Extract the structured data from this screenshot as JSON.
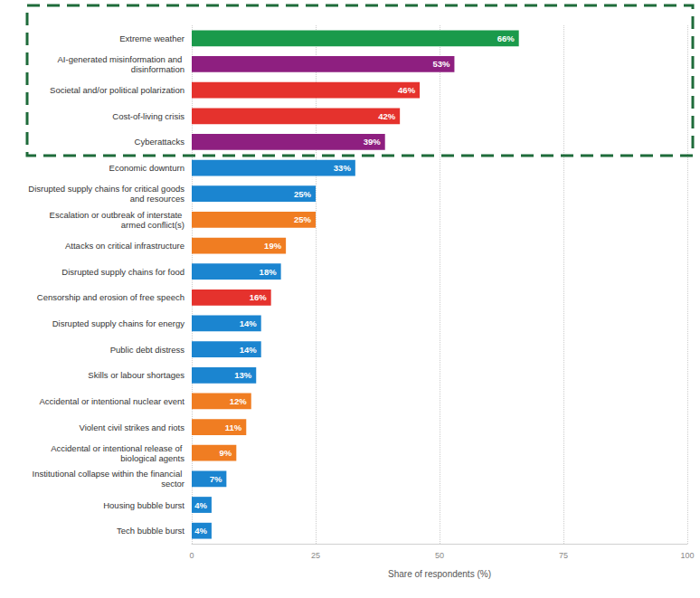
{
  "chart_data": {
    "type": "bar",
    "orientation": "horizontal",
    "xlabel": "Share of respondents (%)",
    "categories": [
      "Extreme weather",
      "AI-generated misinformation and disinformation",
      "Societal and/or political polarization",
      "Cost-of-living crisis",
      "Cyberattacks",
      "Economic downturn",
      "Disrupted supply chains for critical goods and resources",
      "Escalation or outbreak of interstate armed conflict(s)",
      "Attacks on critical infrastructure",
      "Disrupted supply chains for food",
      "Censorship and erosion of free speech",
      "Disrupted supply chains for energy",
      "Public debt distress",
      "Skills or labour shortages",
      "Accidental or intentional nuclear event",
      "Violent civil strikes and riots",
      "Accidental or intentional release of biological agents",
      "Institutional collapse within the financial sector",
      "Housing bubble burst",
      "Tech bubble burst"
    ],
    "values": [
      66,
      53,
      46,
      42,
      39,
      33,
      25,
      25,
      19,
      18,
      16,
      14,
      14,
      13,
      12,
      11,
      9,
      7,
      4,
      4
    ],
    "value_labels": [
      "66%",
      "53%",
      "46%",
      "42%",
      "39%",
      "33%",
      "25%",
      "25%",
      "19%",
      "18%",
      "16%",
      "14%",
      "14%",
      "13%",
      "12%",
      "11%",
      "9%",
      "7%",
      "4%",
      "4%"
    ],
    "colors": [
      "#1a9a4b",
      "#8e1f80",
      "#e5322d",
      "#e5322d",
      "#8e1f80",
      "#1b85d0",
      "#1b85d0",
      "#f07d22",
      "#f07d22",
      "#1b85d0",
      "#e5322d",
      "#1b85d0",
      "#1b85d0",
      "#1b85d0",
      "#f07d22",
      "#f07d22",
      "#f07d22",
      "#1b85d0",
      "#1b85d0",
      "#1b85d0"
    ],
    "xlim": [
      0,
      100
    ],
    "xticks": [
      0,
      25,
      50,
      75,
      100
    ],
    "grid": true,
    "data_labels": true
  }
}
